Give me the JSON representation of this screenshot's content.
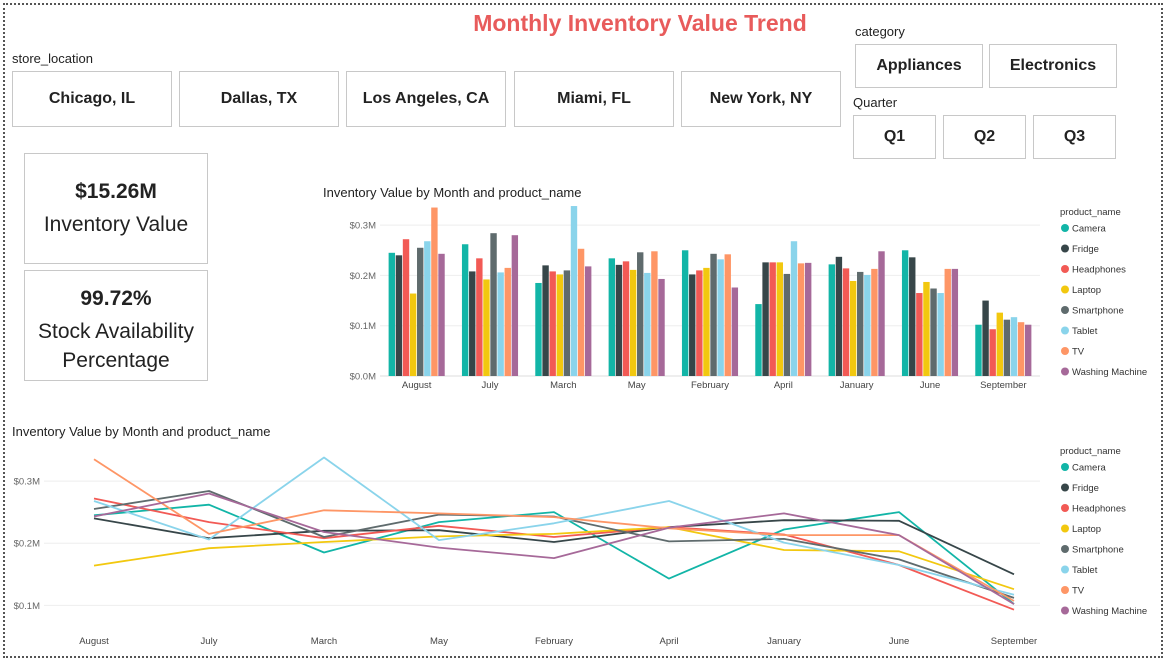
{
  "page_title": "Monthly Inventory Value Trend",
  "store_location": {
    "label": "store_location",
    "options": [
      "Chicago, IL",
      "Dallas, TX",
      "Los Angeles, CA",
      "Miami, FL",
      "New York, NY"
    ]
  },
  "category": {
    "label": "category",
    "options": [
      "Appliances",
      "Electronics"
    ]
  },
  "quarter": {
    "label": "Quarter",
    "options": [
      "Q1",
      "Q2",
      "Q3"
    ]
  },
  "cards": {
    "inventory_value": {
      "value": "$15.26M",
      "label": "Inventory Value"
    },
    "stock_availability": {
      "value": "99.72%",
      "label_line1": "Stock Availability",
      "label_line2": "Percentage"
    }
  },
  "colors": {
    "Camera": "#12b5a7",
    "Fridge": "#374649",
    "Headphones": "#f25a55",
    "Laptop": "#f2c80f",
    "Smartphone": "#5f6b6d",
    "Tablet": "#8ad4eb",
    "TV": "#fe9666",
    "Washing Machine": "#a66999"
  },
  "chart_data": [
    {
      "type": "bar",
      "title": "Inventory Value by Month and product_name",
      "legend_title": "product_name",
      "legend_position": "right",
      "categories": [
        "August",
        "July",
        "March",
        "May",
        "February",
        "April",
        "January",
        "June",
        "September"
      ],
      "ylim": [
        0,
        0.35
      ],
      "yticks": [
        0,
        0.1,
        0.2,
        0.3
      ],
      "ytick_labels": [
        "$0.0M",
        "$0.1M",
        "$0.2M",
        "$0.3M"
      ],
      "series": [
        {
          "name": "Camera",
          "values": [
            0.245,
            0.262,
            0.185,
            0.234,
            0.25,
            0.143,
            0.222,
            0.25,
            0.102
          ]
        },
        {
          "name": "Fridge",
          "values": [
            0.24,
            0.208,
            0.22,
            0.221,
            0.202,
            0.226,
            0.237,
            0.236,
            0.15
          ]
        },
        {
          "name": "Headphones",
          "values": [
            0.272,
            0.234,
            0.208,
            0.228,
            0.21,
            0.226,
            0.214,
            0.165,
            0.093
          ]
        },
        {
          "name": "Laptop",
          "values": [
            0.164,
            0.192,
            0.202,
            0.211,
            0.215,
            0.226,
            0.189,
            0.187,
            0.126
          ]
        },
        {
          "name": "Smartphone",
          "values": [
            0.255,
            0.284,
            0.21,
            0.246,
            0.243,
            0.203,
            0.207,
            0.174,
            0.112
          ]
        },
        {
          "name": "Tablet",
          "values": [
            0.268,
            0.206,
            0.338,
            0.205,
            0.232,
            0.268,
            0.201,
            0.165,
            0.117
          ]
        },
        {
          "name": "TV",
          "values": [
            0.335,
            0.215,
            0.253,
            0.248,
            0.242,
            0.224,
            0.213,
            0.213,
            0.107
          ]
        },
        {
          "name": "Washing Machine",
          "values": [
            0.243,
            0.28,
            0.218,
            0.193,
            0.176,
            0.225,
            0.248,
            0.213,
            0.102
          ]
        }
      ]
    },
    {
      "type": "line",
      "title": "Inventory Value by Month and product_name",
      "legend_title": "product_name",
      "legend_position": "right",
      "categories": [
        "August",
        "July",
        "March",
        "May",
        "February",
        "April",
        "January",
        "June",
        "September"
      ],
      "ylim": [
        0.07,
        0.35
      ],
      "yticks": [
        0.1,
        0.2,
        0.3
      ],
      "ytick_labels": [
        "$0.1M",
        "$0.2M",
        "$0.3M"
      ],
      "series": [
        {
          "name": "Camera",
          "values": [
            0.245,
            0.262,
            0.185,
            0.234,
            0.25,
            0.143,
            0.222,
            0.25,
            0.102
          ]
        },
        {
          "name": "Fridge",
          "values": [
            0.24,
            0.208,
            0.22,
            0.221,
            0.202,
            0.226,
            0.237,
            0.236,
            0.15
          ]
        },
        {
          "name": "Headphones",
          "values": [
            0.272,
            0.234,
            0.208,
            0.228,
            0.21,
            0.226,
            0.214,
            0.165,
            0.093
          ]
        },
        {
          "name": "Laptop",
          "values": [
            0.164,
            0.192,
            0.202,
            0.211,
            0.215,
            0.226,
            0.189,
            0.187,
            0.126
          ]
        },
        {
          "name": "Smartphone",
          "values": [
            0.255,
            0.284,
            0.21,
            0.246,
            0.243,
            0.203,
            0.207,
            0.174,
            0.112
          ]
        },
        {
          "name": "Tablet",
          "values": [
            0.268,
            0.206,
            0.338,
            0.205,
            0.232,
            0.268,
            0.201,
            0.165,
            0.117
          ]
        },
        {
          "name": "TV",
          "values": [
            0.335,
            0.215,
            0.253,
            0.248,
            0.242,
            0.224,
            0.213,
            0.213,
            0.107
          ]
        },
        {
          "name": "Washing Machine",
          "values": [
            0.243,
            0.28,
            0.218,
            0.193,
            0.176,
            0.225,
            0.248,
            0.213,
            0.102
          ]
        }
      ]
    }
  ]
}
